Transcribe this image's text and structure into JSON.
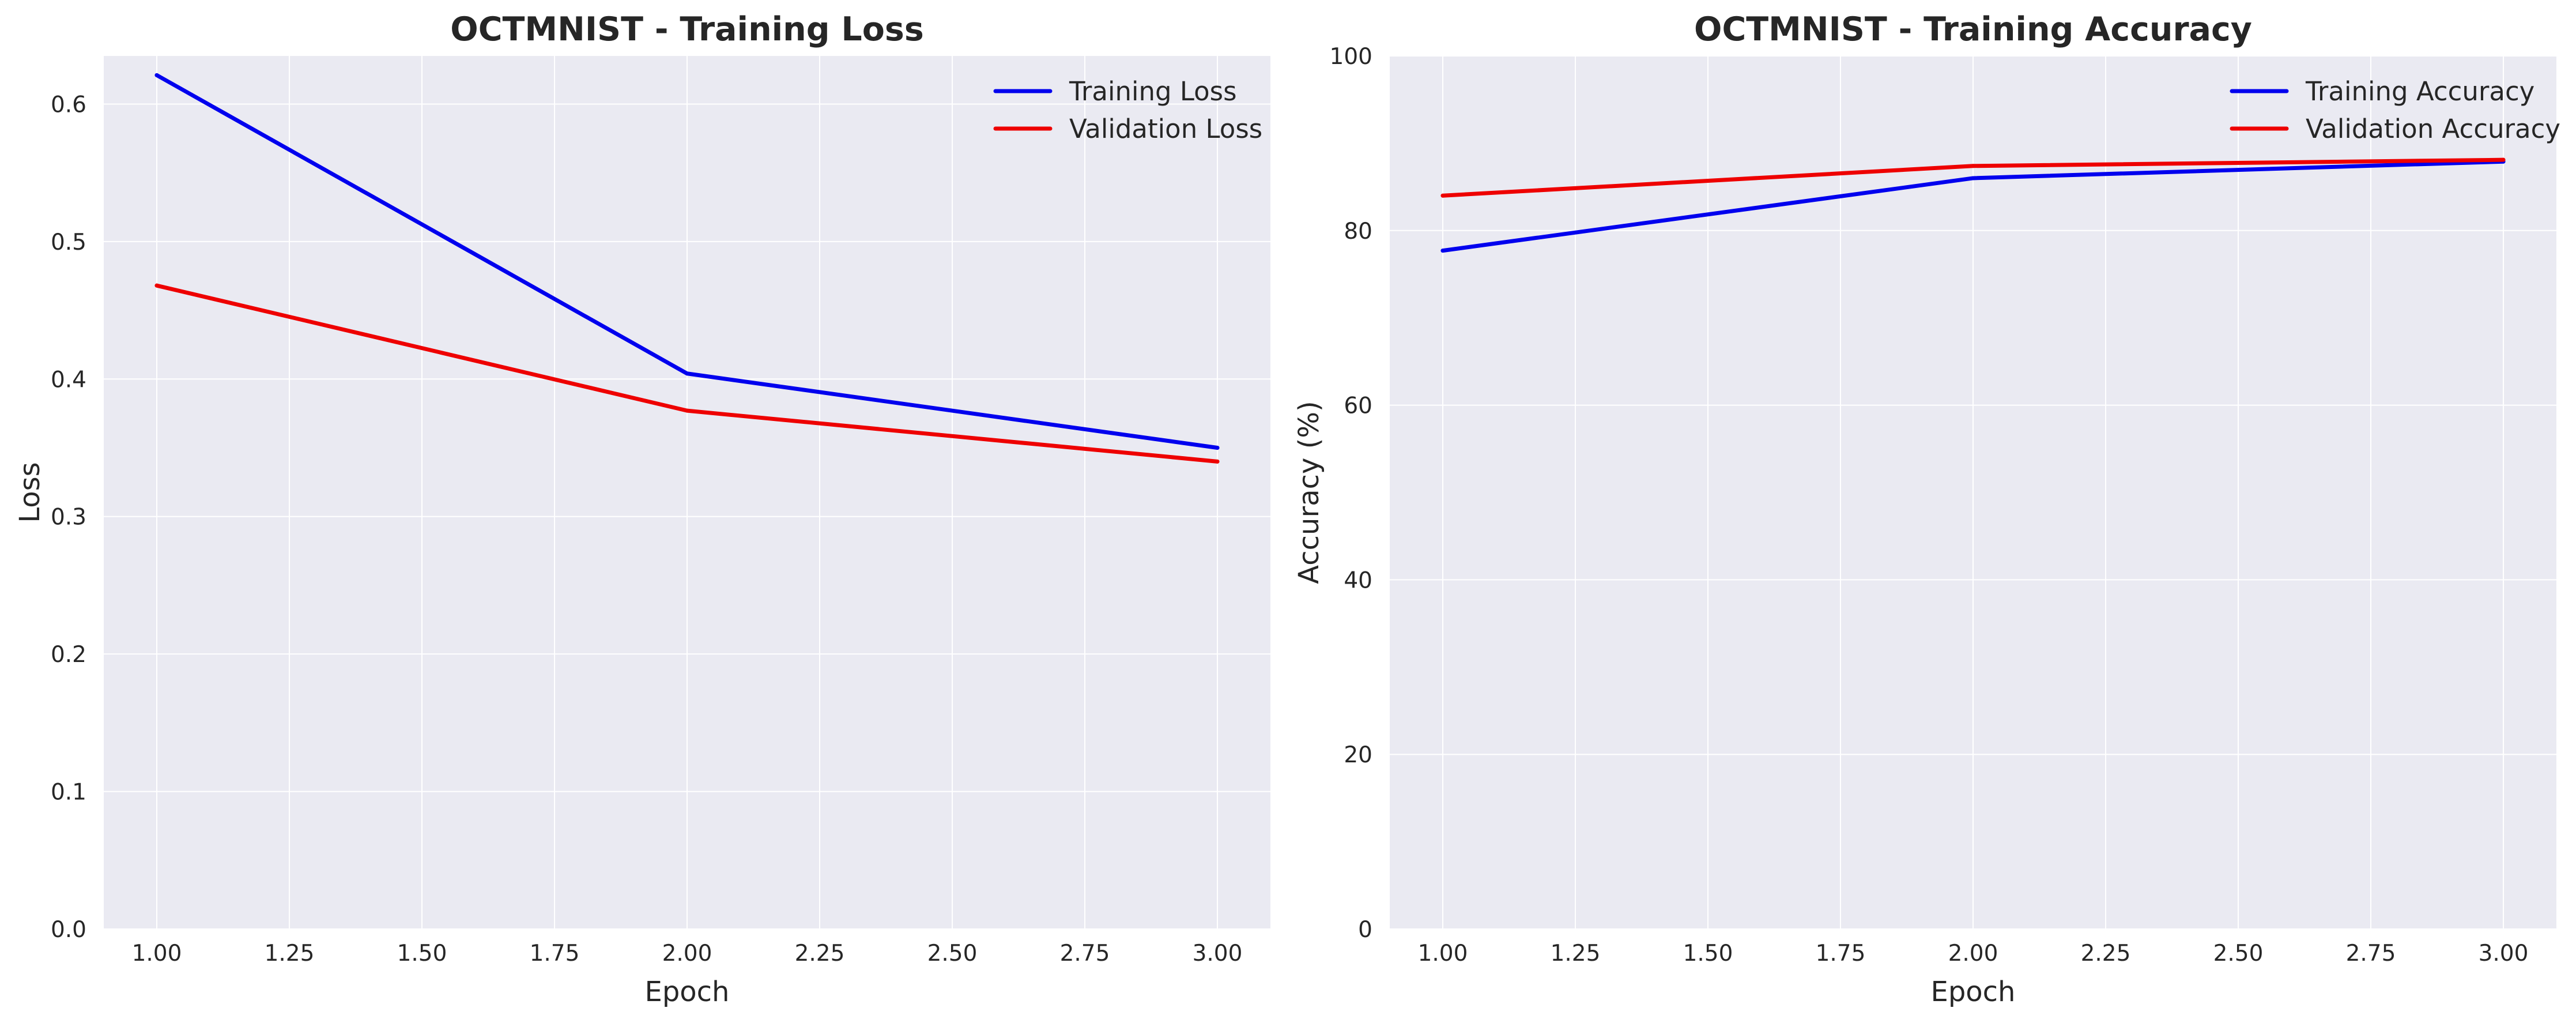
{
  "figure": {
    "background": "#ffffff",
    "plot_background": "#eaeaf2",
    "grid_color": "#ffffff"
  },
  "chart_data": [
    {
      "type": "line",
      "title": "OCTMNIST - Training Loss",
      "xlabel": "Epoch",
      "ylabel": "Loss",
      "xlim": [
        0.9,
        3.1
      ],
      "ylim": [
        0.0,
        0.635
      ],
      "x_ticks": [
        1.0,
        1.25,
        1.5,
        1.75,
        2.0,
        2.25,
        2.5,
        2.75,
        3.0
      ],
      "x_tick_labels": [
        "1.00",
        "1.25",
        "1.50",
        "1.75",
        "2.00",
        "2.25",
        "2.50",
        "2.75",
        "3.00"
      ],
      "y_ticks": [
        0.0,
        0.1,
        0.2,
        0.3,
        0.4,
        0.5,
        0.6
      ],
      "y_tick_labels": [
        "0.0",
        "0.1",
        "0.2",
        "0.3",
        "0.4",
        "0.5",
        "0.6"
      ],
      "grid": true,
      "legend_position": "top-right",
      "x": [
        1,
        2,
        3
      ],
      "series": [
        {
          "name": "Training Loss",
          "color": "#0000ee",
          "values": [
            0.621,
            0.404,
            0.35
          ]
        },
        {
          "name": "Validation Loss",
          "color": "#ee0000",
          "values": [
            0.468,
            0.377,
            0.34
          ]
        }
      ]
    },
    {
      "type": "line",
      "title": "OCTMNIST - Training Accuracy",
      "xlabel": "Epoch",
      "ylabel": "Accuracy (%)",
      "xlim": [
        0.9,
        3.1
      ],
      "ylim": [
        0,
        100
      ],
      "x_ticks": [
        1.0,
        1.25,
        1.5,
        1.75,
        2.0,
        2.25,
        2.5,
        2.75,
        3.0
      ],
      "x_tick_labels": [
        "1.00",
        "1.25",
        "1.50",
        "1.75",
        "2.00",
        "2.25",
        "2.50",
        "2.75",
        "3.00"
      ],
      "y_ticks": [
        0,
        20,
        40,
        60,
        80,
        100
      ],
      "y_tick_labels": [
        "0",
        "20",
        "40",
        "60",
        "80",
        "100"
      ],
      "grid": true,
      "legend_position": "top-right",
      "x": [
        1,
        2,
        3
      ],
      "series": [
        {
          "name": "Training Accuracy",
          "color": "#0000ee",
          "values": [
            77.7,
            86.0,
            87.9
          ]
        },
        {
          "name": "Validation Accuracy",
          "color": "#ee0000",
          "values": [
            84.0,
            87.4,
            88.1
          ]
        }
      ]
    }
  ]
}
